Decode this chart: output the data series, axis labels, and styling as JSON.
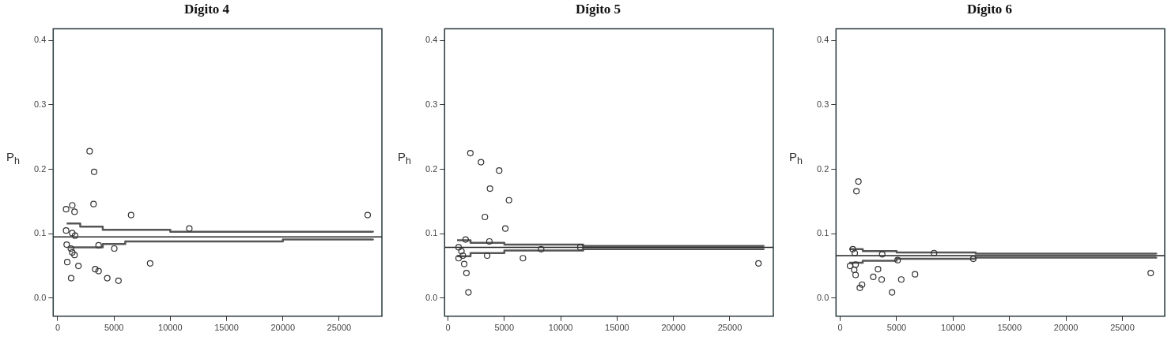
{
  "chart_data": [
    {
      "type": "scatter",
      "title": "Dígito 4",
      "ylabel": "P$_{h}$",
      "marker": "circle",
      "grid": false,
      "legend": false,
      "xlim": [
        -400,
        28800
      ],
      "ylim": [
        -0.028,
        0.418
      ],
      "xticks": [
        0,
        5000,
        10000,
        15000,
        20000,
        25000
      ],
      "yticks": [
        {
          "value": 0,
          "label": "0.0"
        },
        {
          "value": 0.1,
          "label": "0.1"
        },
        {
          "value": 0.2,
          "label": "0.2"
        },
        {
          "value": 0.3,
          "label": "0.3"
        },
        {
          "value": 0.4,
          "label": "0.4"
        }
      ],
      "ref_lines": [
        {
          "axis": "y",
          "value": 0.095,
          "color": "#222222"
        }
      ],
      "series": [
        {
          "type": "scatter",
          "color": "#333333",
          "x": [
            2836,
            3234,
            3184,
            746,
            1294,
            1493,
            6517,
            27537,
            11692,
            746,
            1294,
            1542,
            796,
            1169,
            1294,
            1493,
            3632,
            5025,
            846,
            1841,
            8209,
            3333,
            3632,
            1194,
            4403,
            5398
          ],
          "values": [
            0.228,
            0.196,
            0.146,
            0.138,
            0.144,
            0.134,
            0.129,
            0.129,
            0.108,
            0.105,
            0.101,
            0.097,
            0.083,
            0.077,
            0.071,
            0.067,
            0.082,
            0.077,
            0.056,
            0.05,
            0.054,
            0.045,
            0.042,
            0.031,
            0.031,
            0.027
          ]
        },
        {
          "type": "step",
          "color": "#555555",
          "marker": "none",
          "x": [
            800,
            2000,
            4000,
            10000,
            28000
          ],
          "values": [
            0.116,
            0.111,
            0.106,
            0.103,
            0.102
          ]
        },
        {
          "type": "step",
          "color": "#555555",
          "marker": "none",
          "x": [
            1000,
            4000,
            6000,
            20000,
            28000
          ],
          "values": [
            0.079,
            0.084,
            0.088,
            0.091,
            0.092
          ]
        }
      ]
    },
    {
      "type": "scatter",
      "title": "Dígito 5",
      "ylabel": "P$_{h}$",
      "marker": "circle",
      "grid": false,
      "legend": false,
      "xlim": [
        -300,
        28860
      ],
      "ylim": [
        -0.028,
        0.418
      ],
      "xticks": [
        0,
        5000,
        10000,
        15000,
        20000,
        25000
      ],
      "yticks": [
        {
          "value": 0,
          "label": "0.0"
        },
        {
          "value": 0.1,
          "label": "0.1"
        },
        {
          "value": 0.2,
          "label": "0.2"
        },
        {
          "value": 0.3,
          "label": "0.3"
        },
        {
          "value": 0.4,
          "label": "0.4"
        }
      ],
      "ref_lines": [
        {
          "axis": "y",
          "value": 0.079,
          "color": "#222222"
        }
      ],
      "series": [
        {
          "type": "scatter",
          "color": "#333333",
          "x": [
            1985,
            2928,
            4541,
            3722,
            5409,
            3275,
            5087,
            6650,
            27543,
            1439,
            1638,
            1811,
            943,
            1191,
            1315,
            943,
            1563,
            3474,
            3672,
            8263,
            11737
          ],
          "values": [
            0.225,
            0.211,
            0.198,
            0.17,
            0.152,
            0.126,
            0.108,
            0.062,
            0.054,
            0.053,
            0.039,
            0.009,
            0.079,
            0.073,
            0.066,
            0.062,
            0.091,
            0.066,
            0.088,
            0.076,
            0.079
          ]
        },
        {
          "type": "step",
          "color": "#555555",
          "marker": "none",
          "x": [
            800,
            2000,
            5000,
            12000,
            28000
          ],
          "values": [
            0.09,
            0.086,
            0.083,
            0.081,
            0.08
          ]
        },
        {
          "type": "step",
          "color": "#555555",
          "marker": "none",
          "x": [
            800,
            2000,
            5000,
            12000,
            28000
          ],
          "values": [
            0.065,
            0.07,
            0.074,
            0.076,
            0.077
          ]
        }
      ]
    },
    {
      "type": "scatter",
      "title": "Dígito 6",
      "ylabel": "P$_{h}$",
      "marker": "circle",
      "grid": false,
      "legend": false,
      "xlim": [
        -370,
        28750
      ],
      "ylim": [
        -0.028,
        0.418
      ],
      "xticks": [
        0,
        5000,
        10000,
        15000,
        20000,
        25000
      ],
      "yticks": [
        {
          "value": 0,
          "label": "0.0"
        },
        {
          "value": 0.1,
          "label": "0.1"
        },
        {
          "value": 0.2,
          "label": "0.2"
        },
        {
          "value": 0.3,
          "label": "0.3"
        },
        {
          "value": 0.4,
          "label": "0.4"
        }
      ],
      "ref_lines": [
        {
          "axis": "y",
          "value": 0.066,
          "color": "#222222"
        }
      ],
      "series": [
        {
          "type": "scatter",
          "color": "#333333",
          "x": [
            1614,
            1440,
            1117,
            1291,
            869,
            1365,
            1241,
            1365,
            1936,
            1738,
            2929,
            3352,
            3674,
            4593,
            5412,
            6629,
            5089,
            8317,
            11792,
            27508,
            3724
          ],
          "values": [
            0.181,
            0.166,
            0.076,
            0.07,
            0.05,
            0.052,
            0.044,
            0.036,
            0.021,
            0.016,
            0.033,
            0.045,
            0.029,
            0.009,
            0.029,
            0.037,
            0.059,
            0.07,
            0.061,
            0.039,
            0.068
          ]
        },
        {
          "type": "step",
          "color": "#555555",
          "marker": "none",
          "x": [
            800,
            2000,
            5000,
            12000,
            28000
          ],
          "values": [
            0.076,
            0.073,
            0.071,
            0.069,
            0.068
          ]
        },
        {
          "type": "step",
          "color": "#555555",
          "marker": "none",
          "x": [
            800,
            2000,
            5000,
            12000,
            28000
          ],
          "values": [
            0.055,
            0.058,
            0.061,
            0.063,
            0.064
          ]
        }
      ]
    }
  ]
}
